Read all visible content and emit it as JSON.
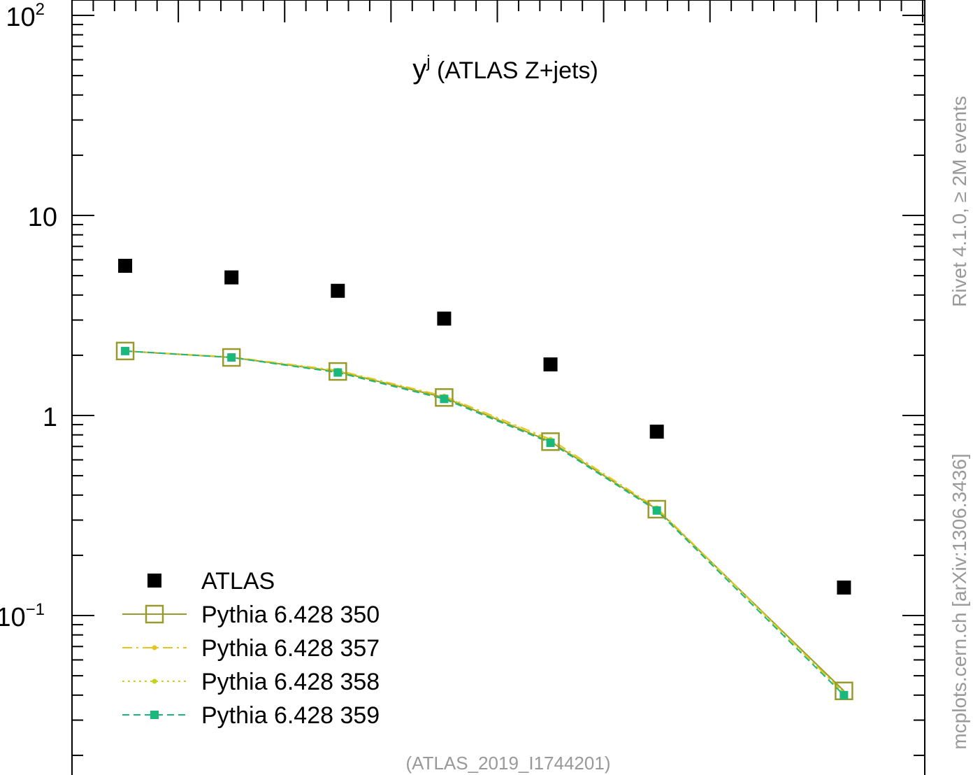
{
  "chart_data": {
    "type": "scatter",
    "title": "yʲ (ATLAS Z+jets)",
    "title_base": "y",
    "title_sup": "j",
    "title_rest": " (ATLAS Z+jets)",
    "y_scale": "log",
    "ylim": [
      0.02,
      100
    ],
    "x": [
      0.25,
      0.75,
      1.25,
      1.75,
      2.25,
      2.75,
      3.63
    ],
    "y_ticks": [
      {
        "base": "10",
        "exp": "2",
        "value": 100
      },
      {
        "base": "10",
        "exp": "",
        "value": 10
      },
      {
        "base": "1",
        "exp": "",
        "value": 1
      },
      {
        "base": "10",
        "exp": "−1",
        "value": 0.1
      }
    ],
    "series": [
      {
        "name": "ATLAS",
        "values": [
          5.6,
          4.9,
          4.2,
          3.05,
          1.8,
          0.83,
          0.138
        ],
        "color": "#000000",
        "marker": "square-filled",
        "line": "none"
      },
      {
        "name": "Pythia 6.428 350",
        "values": [
          2.1,
          1.95,
          1.66,
          1.23,
          0.74,
          0.34,
          0.042
        ],
        "color": "#999a2c",
        "marker": "square-open",
        "line": "solid"
      },
      {
        "name": "Pythia 6.428 357",
        "values": [
          2.1,
          1.96,
          1.68,
          1.25,
          0.76,
          0.345,
          0.041
        ],
        "color": "#e6c51e",
        "marker": "dot",
        "line": "dashdot"
      },
      {
        "name": "Pythia 6.428 358",
        "values": [
          2.1,
          1.95,
          1.67,
          1.24,
          0.75,
          0.34,
          0.041
        ],
        "color": "#c5d41a",
        "marker": "dot",
        "line": "dotted"
      },
      {
        "name": "Pythia 6.428 359",
        "values": [
          2.1,
          1.95,
          1.64,
          1.21,
          0.73,
          0.335,
          0.04
        ],
        "color": "#1ab87a",
        "marker": "square-filled-small",
        "line": "dashed"
      }
    ],
    "legend": "bottom-left",
    "footer": "(ATLAS_2019_I1744201)",
    "side_text_top": "Rivet 4.1.0, ≥ 2M events",
    "side_text_bottom": "mcplots.cern.ch [arXiv:1306.3436]"
  }
}
